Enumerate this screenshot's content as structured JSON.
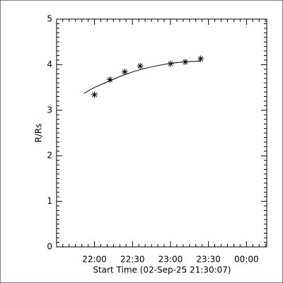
{
  "chart_data": {
    "type": "line",
    "xlabel": "Start Time (02-Sep-25 21:30:07)",
    "ylabel": "R/Rs",
    "series": [
      {
        "color": "#000000",
        "marker": "asterisk",
        "line": false,
        "x": [
          1320,
          1332.2,
          1343.9,
          1356.1,
          1380,
          1391.7,
          1403.9
        ],
        "values": [
          3.34,
          3.67,
          3.84,
          3.97,
          4.02,
          4.06,
          4.13
        ]
      },
      {
        "color": "#000000",
        "marker": "none",
        "line": true,
        "x": [
          1311.7,
          1320,
          1330,
          1340,
          1350,
          1360,
          1370,
          1380,
          1390,
          1403.9
        ],
        "values": [
          3.37,
          3.5,
          3.62,
          3.74,
          3.84,
          3.92,
          3.98,
          4.03,
          4.06,
          4.08
        ]
      }
    ],
    "xlim": [
      1290.1,
      1456
    ],
    "ylim": [
      0,
      5
    ],
    "xticks": [
      {
        "value": 1320,
        "label": "22:00"
      },
      {
        "value": 1350,
        "label": "22:30"
      },
      {
        "value": 1380,
        "label": "23:00"
      },
      {
        "value": 1410,
        "label": "23:30"
      },
      {
        "value": 1440,
        "label": "00:00"
      }
    ],
    "yticks": [
      0,
      1,
      2,
      3,
      4,
      5
    ],
    "xminor": 6,
    "yminor": 10,
    "grid": false
  }
}
